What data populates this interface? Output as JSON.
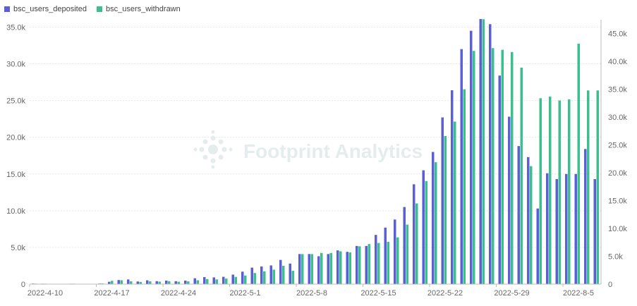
{
  "watermark": "Footprint Analytics",
  "colors": {
    "deposited": "#5b5fd6",
    "withdrawn": "#3cbf8e"
  },
  "chart_data": {
    "type": "bar",
    "legend_position": "top-left",
    "grid": true,
    "series": [
      {
        "name": "bsc_users_deposited",
        "axis": "left",
        "values": [
          80,
          60,
          20,
          5,
          60,
          40,
          20,
          80,
          320,
          560,
          640,
          360,
          520,
          400,
          480,
          400,
          480,
          800,
          960,
          920,
          1000,
          1300,
          1700,
          2250,
          2400,
          2550,
          3300,
          2800,
          4100,
          4100,
          3800,
          4100,
          4600,
          4400,
          5200,
          5200,
          6700,
          7700,
          8800,
          10500,
          13600,
          15500,
          18000,
          22700,
          26400,
          32000,
          34500,
          36100,
          35400,
          28400,
          22800,
          18800,
          17300,
          10300,
          15100,
          14300,
          15000,
          15000,
          18400,
          14300
        ],
        "ylim": [
          0,
          36000
        ]
      },
      {
        "name": "bsc_users_withdrawn",
        "axis": "right",
        "values": [
          90,
          80,
          20,
          10,
          80,
          60,
          30,
          120,
          600,
          700,
          500,
          400,
          500,
          450,
          520,
          430,
          500,
          700,
          900,
          850,
          1000,
          1300,
          1550,
          2000,
          2300,
          2600,
          3300,
          2400,
          5400,
          5400,
          5600,
          5600,
          5900,
          5700,
          6800,
          7200,
          7400,
          7600,
          8400,
          10700,
          14500,
          18500,
          21900,
          26600,
          29200,
          35000,
          41900,
          47600,
          42400,
          42100,
          41700,
          38900,
          21200,
          33400,
          33700,
          33000,
          33200,
          43200,
          34800,
          34800
        ],
        "ylim": [
          0,
          47500
        ]
      }
    ],
    "x_tick_labels": [
      "2022-4-10",
      "2022-4-17",
      "2022-4-24",
      "2022-5-1",
      "2022-5-8",
      "2022-5-15",
      "2022-5-22",
      "2022-5-29",
      "2022-8-5"
    ],
    "x_tick_index": [
      0,
      7,
      14,
      21,
      28,
      35,
      42,
      49,
      56
    ],
    "yleft_ticks": [
      0,
      5000,
      10000,
      15000,
      20000,
      25000,
      30000,
      35000
    ],
    "yleft_tick_labels": [
      "0",
      "5.0k",
      "10.0k",
      "15.0k",
      "20.0k",
      "25.0k",
      "30.0k",
      "35.0k"
    ],
    "yright_ticks": [
      0,
      5000,
      10000,
      15000,
      20000,
      25000,
      30000,
      35000,
      40000,
      45000
    ],
    "yright_tick_labels": [
      "0",
      "5.0k",
      "10.0k",
      "15.0k",
      "20.0k",
      "25.0k",
      "30.0k",
      "35.0k",
      "40.0k",
      "45.0k"
    ]
  }
}
